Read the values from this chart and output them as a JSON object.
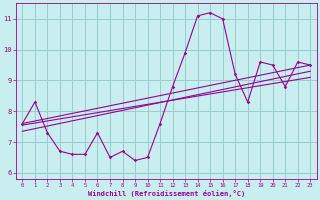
{
  "x": [
    0,
    1,
    2,
    3,
    4,
    5,
    6,
    7,
    8,
    9,
    10,
    11,
    12,
    13,
    14,
    15,
    16,
    17,
    18,
    19,
    20,
    21,
    22,
    23
  ],
  "y_line1": [
    7.6,
    8.3,
    7.3,
    6.7,
    6.6,
    6.6,
    7.3,
    6.5,
    6.7,
    6.4,
    6.5,
    7.6,
    8.8,
    9.9,
    11.1,
    11.2,
    11.0,
    9.2,
    8.3,
    9.6,
    9.5,
    8.8,
    9.6,
    9.5
  ],
  "bg_color": "#c8eef0",
  "line_color": "#990099",
  "grid_color": "#99cccc",
  "xlabel": "Windchill (Refroidissement éolien,°C)",
  "tick_color": "#990099",
  "xlim": [
    -0.5,
    23.5
  ],
  "ylim": [
    5.8,
    11.5
  ],
  "yticks": [
    6,
    7,
    8,
    9,
    10,
    11
  ],
  "xticks": [
    0,
    1,
    2,
    3,
    4,
    5,
    6,
    7,
    8,
    9,
    10,
    11,
    12,
    13,
    14,
    15,
    16,
    17,
    18,
    19,
    20,
    21,
    22,
    23
  ],
  "trend_lines": [
    {
      "x0": 0.0,
      "y0": 7.55,
      "x1": 23.0,
      "y1": 9.1
    },
    {
      "x0": 0.0,
      "y0": 7.35,
      "x1": 23.0,
      "y1": 9.3
    },
    {
      "x0": 0.0,
      "y0": 7.6,
      "x1": 23.0,
      "y1": 9.5
    }
  ]
}
